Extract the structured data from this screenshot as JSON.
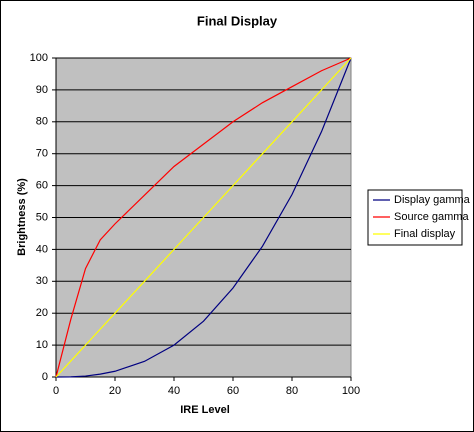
{
  "chart_data": {
    "type": "line",
    "title": "Final Display",
    "x_label": "IRE Level",
    "y_label": "Brightness (%)",
    "x": [
      0,
      5,
      10,
      15,
      20,
      30,
      40,
      50,
      60,
      70,
      80,
      90,
      100
    ],
    "series": [
      {
        "name": "Display gamma",
        "color": "#000080",
        "values": [
          0,
          0.05,
          0.3,
          0.9,
          1.8,
          4.9,
          10,
          17.5,
          27.9,
          41,
          57.2,
          76.9,
          100
        ]
      },
      {
        "name": "Source gamma",
        "color": "#ff0000",
        "values": [
          0,
          18,
          34,
          43,
          48,
          57,
          66,
          73,
          80,
          86,
          91,
          96,
          100
        ]
      },
      {
        "name": "Final display",
        "color": "#ffff00",
        "values": [
          0,
          5,
          10,
          15,
          20,
          30,
          40,
          50,
          60,
          70,
          80,
          90,
          100
        ]
      }
    ],
    "xlim": [
      0,
      100
    ],
    "xticks": [
      0,
      20,
      40,
      60,
      80,
      100
    ],
    "ylim": [
      0,
      100
    ],
    "yticks": [
      0,
      10,
      20,
      30,
      40,
      50,
      60,
      70,
      80,
      90,
      100
    ],
    "grid": true,
    "plot_background": "#c0c0c0",
    "legend": "right"
  }
}
